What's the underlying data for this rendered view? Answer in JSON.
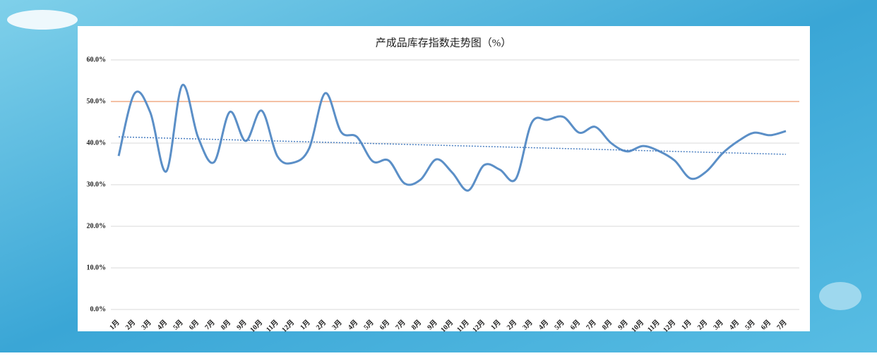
{
  "chart_data": {
    "type": "line",
    "title": "产成品库存指数走势图（%）",
    "categories": [
      "1月",
      "2月",
      "3月",
      "4月",
      "5月",
      "6月",
      "7月",
      "8月",
      "9月",
      "10月",
      "11月",
      "12月",
      "1月",
      "2月",
      "3月",
      "4月",
      "5月",
      "6月",
      "7月",
      "8月",
      "9月",
      "10月",
      "11月",
      "12月",
      "1月",
      "2月",
      "3月",
      "4月",
      "5月",
      "6月",
      "7月",
      "8月",
      "9月",
      "10月",
      "11月",
      "12月",
      "1月",
      "2月",
      "3月",
      "4月",
      "5月",
      "6月",
      "7月"
    ],
    "series": [
      {
        "color": "#5b8fc7",
        "values": [
          36.9,
          51.9,
          47.3,
          33.2,
          53.9,
          41.4,
          35.4,
          47.5,
          40.5,
          47.8,
          36.8,
          35.3,
          38.8,
          52.0,
          42.7,
          41.5,
          35.6,
          35.8,
          30.3,
          31.2,
          36.1,
          32.9,
          28.6,
          34.7,
          33.6,
          31.4,
          44.9,
          45.6,
          46.3,
          42.5,
          43.9,
          40.0,
          38.0,
          39.3,
          38.1,
          35.8,
          31.5,
          33.2,
          37.5,
          40.5,
          42.5,
          41.9,
          42.9
        ]
      }
    ],
    "trendline": {
      "start": 41.5,
      "end": 37.3,
      "color": "#4a7fc1"
    },
    "reference_line": {
      "value": 50,
      "color": "#e8804a"
    },
    "ylim": [
      0,
      60
    ],
    "yticks": [
      {
        "value": 0,
        "label": "0.0%"
      },
      {
        "value": 10,
        "label": "10.0%"
      },
      {
        "value": 20,
        "label": "20.0%"
      },
      {
        "value": 30,
        "label": "30.0%"
      },
      {
        "value": 40,
        "label": "40.0%"
      },
      {
        "value": 50,
        "label": "50.0%"
      },
      {
        "value": 60,
        "label": "60.0%"
      }
    ],
    "grid": true
  }
}
